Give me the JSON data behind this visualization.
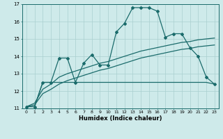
{
  "x": [
    0,
    1,
    2,
    3,
    4,
    5,
    6,
    7,
    8,
    9,
    10,
    11,
    12,
    13,
    14,
    15,
    16,
    17,
    18,
    19,
    20,
    21,
    22,
    23
  ],
  "line_main": [
    11.1,
    11.1,
    12.5,
    12.5,
    13.9,
    13.9,
    12.5,
    13.6,
    14.1,
    13.5,
    13.5,
    15.4,
    15.9,
    16.8,
    16.8,
    16.8,
    16.6,
    15.1,
    15.3,
    15.3,
    14.5,
    14.0,
    12.8,
    12.4
  ],
  "line_flat": [
    11.1,
    11.1,
    12.5,
    12.5,
    12.5,
    12.5,
    12.5,
    12.5,
    12.5,
    12.5,
    12.5,
    12.5,
    12.5,
    12.5,
    12.5,
    12.5,
    12.5,
    12.5,
    12.5,
    12.5,
    12.5,
    12.5,
    12.5,
    12.4
  ],
  "line_trend1": [
    11.1,
    11.2,
    11.85,
    12.1,
    12.4,
    12.6,
    12.75,
    12.9,
    13.05,
    13.2,
    13.3,
    13.45,
    13.6,
    13.75,
    13.9,
    14.0,
    14.1,
    14.2,
    14.3,
    14.4,
    14.45,
    14.55,
    14.6,
    14.65
  ],
  "line_trend2": [
    11.1,
    11.3,
    12.1,
    12.4,
    12.8,
    13.0,
    13.15,
    13.3,
    13.45,
    13.6,
    13.7,
    13.85,
    14.0,
    14.15,
    14.3,
    14.4,
    14.5,
    14.6,
    14.7,
    14.8,
    14.85,
    14.95,
    15.0,
    15.05
  ],
  "bg_color": "#ceeaea",
  "grid_color": "#aacfcf",
  "line_color": "#1a6b6b",
  "xlim": [
    -0.5,
    23.5
  ],
  "ylim": [
    11,
    17
  ],
  "yticks": [
    11,
    12,
    13,
    14,
    15,
    16,
    17
  ],
  "xlabel": "Humidex (Indice chaleur)",
  "xtick_labels": [
    "0",
    "1",
    "2",
    "3",
    "4",
    "5",
    "6",
    "7",
    "8",
    "9",
    "10",
    "11",
    "12",
    "13",
    "14",
    "15",
    "16",
    "17",
    "18",
    "19",
    "20",
    "21",
    "22",
    "23"
  ]
}
